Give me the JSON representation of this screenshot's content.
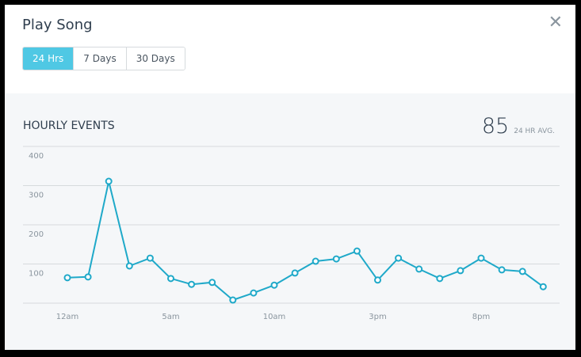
{
  "modal": {
    "title": "Play Song",
    "close_icon": "close-icon",
    "tabs": [
      {
        "label": "24 Hrs",
        "active": true
      },
      {
        "label": "7 Days",
        "active": false
      },
      {
        "label": "30 Days",
        "active": false
      }
    ]
  },
  "panel": {
    "heading": "HOURLY EVENTS",
    "avg_value": "85",
    "avg_label": "24 HR AVG."
  },
  "colors": {
    "accent": "#4fc8e4",
    "line": "#1fa9c9",
    "grid": "#d6dadd",
    "panel_bg": "#f5f7f9"
  },
  "chart_data": {
    "type": "line",
    "title": "HOURLY EVENTS",
    "xlabel": "",
    "ylabel": "",
    "ylim": [
      0,
      400
    ],
    "yticks": [
      100,
      200,
      300,
      400
    ],
    "x_tick_labels": [
      "12am",
      "5am",
      "10am",
      "3pm",
      "8pm"
    ],
    "grid": true,
    "legend": null,
    "categories": [
      "12am",
      "1am",
      "2am",
      "3am",
      "4am",
      "5am",
      "6am",
      "7am",
      "8am",
      "9am",
      "10am",
      "11am",
      "12pm",
      "1pm",
      "2pm",
      "3pm",
      "4pm",
      "5pm",
      "6pm",
      "7pm",
      "8pm",
      "9pm",
      "10pm",
      "11pm"
    ],
    "series": [
      {
        "name": "Play Song",
        "values": [
          65,
          67,
          311,
          95,
          115,
          63,
          48,
          53,
          8,
          26,
          46,
          77,
          107,
          113,
          133,
          59,
          115,
          87,
          63,
          83,
          115,
          85,
          81,
          42
        ]
      }
    ],
    "annotation": "85 24 HR AVG."
  }
}
